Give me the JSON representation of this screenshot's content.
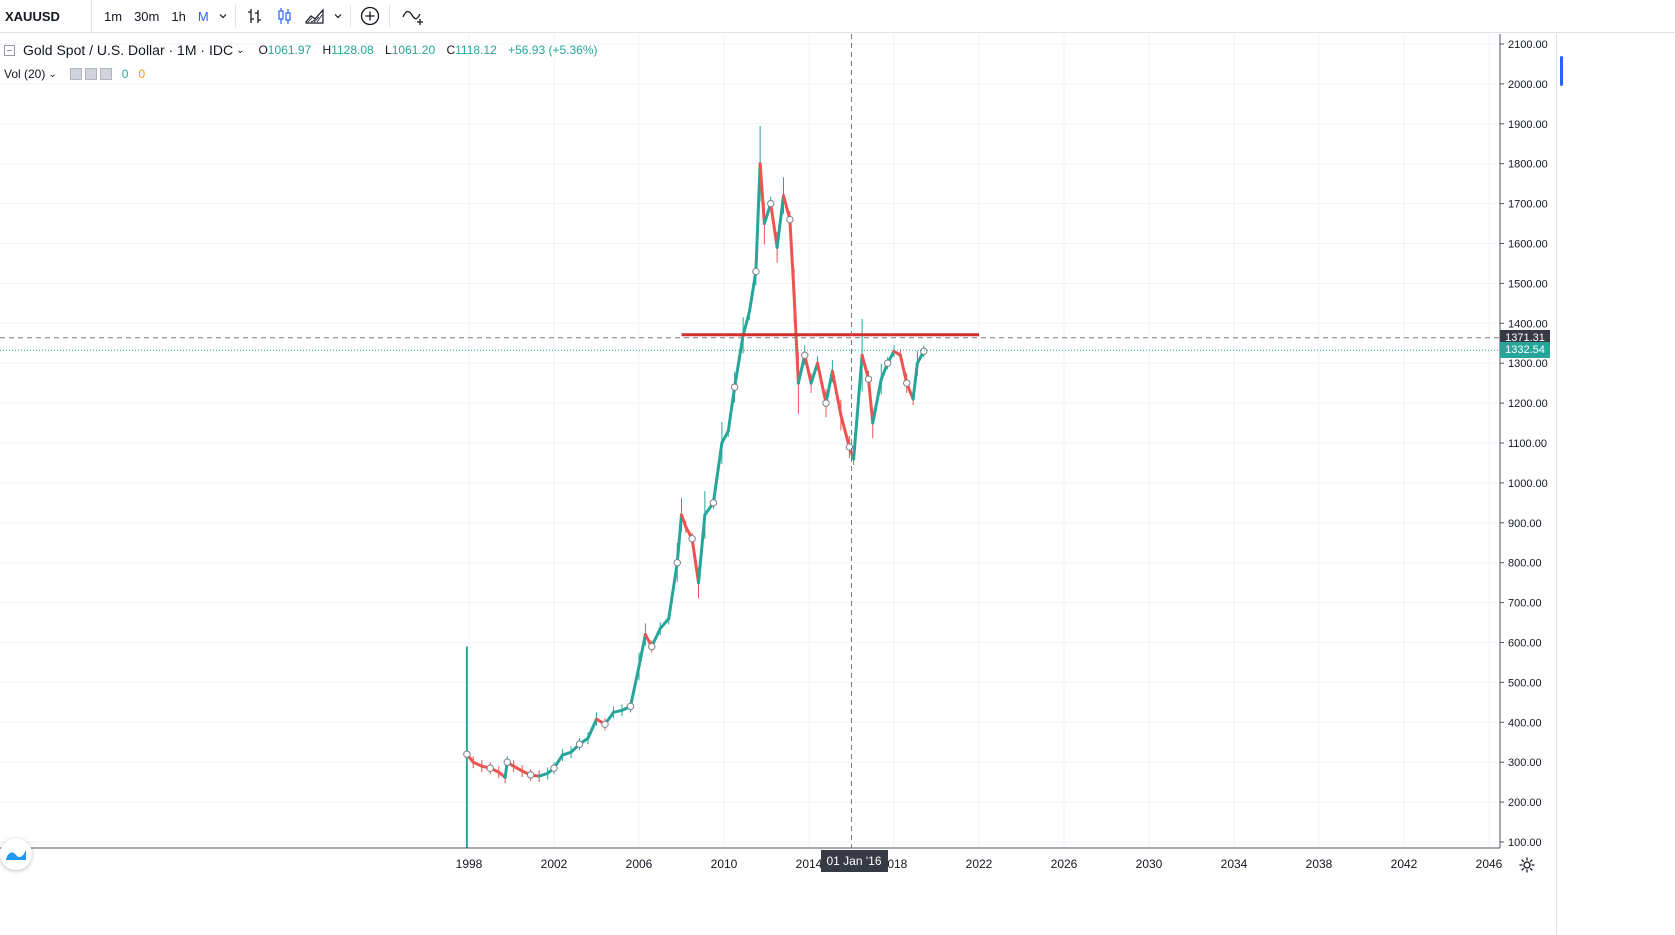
{
  "toolbar": {
    "symbol": "XAUUSD",
    "intervals": [
      "1m",
      "30m",
      "1h",
      "M"
    ],
    "active_interval": "M",
    "icons": [
      "interval-caret-icon",
      "bar-chart-icon",
      "candles-icon",
      "area-chart-icon",
      "chart-type-caret-icon",
      "add-compare-icon",
      "indicators-icon"
    ]
  },
  "legend": {
    "title": "Gold Spot / U.S. Dollar · 1M · IDC",
    "open_label": "O",
    "open": "1061.97",
    "high_label": "H",
    "high": "1128.08",
    "low_label": "L",
    "low": "1061.20",
    "close_label": "C",
    "close": "1118.12",
    "change": "+56.93 (+5.36%)"
  },
  "volume": {
    "label": "Vol (20)",
    "value1": "0",
    "value2": "0"
  },
  "price_tags": {
    "hline": "1371.31",
    "last": "1332.54"
  },
  "crosshair_date": "01 Jan '16",
  "colors": {
    "up": "#26a69a",
    "down": "#ef5350",
    "hline": "#d32f2f",
    "axis_tag_dark": "#363a45",
    "last_price": "#26a69a",
    "grid": "#f0f3fa"
  },
  "chart_data": {
    "type": "line",
    "title": "Gold Spot / U.S. Dollar",
    "ylabel": "",
    "xlabel": "",
    "ylim": [
      100,
      2100
    ],
    "yticks": [
      "100.00",
      "200.00",
      "300.00",
      "400.00",
      "500.00",
      "600.00",
      "700.00",
      "800.00",
      "900.00",
      "1000.00",
      "1100.00",
      "1200.00",
      "1300.00",
      "1400.00",
      "1500.00",
      "1600.00",
      "1700.00",
      "1800.00",
      "1900.00",
      "2000.00",
      "2100.00"
    ],
    "xticks": [
      "1998",
      "2002",
      "2006",
      "2010",
      "2014",
      "2018",
      "2022",
      "2026",
      "2030",
      "2034",
      "2038",
      "2042",
      "2046"
    ],
    "xlim": [
      1997.5,
      2046.3
    ],
    "grid": true,
    "horizontal_line": {
      "value": 1371.31,
      "from_year": 2008.0,
      "to_year": 2022.0
    },
    "last_price": 1332.54,
    "crosshair_year": 2016.0,
    "series": [
      {
        "x": [
          1997.9,
          1998.2,
          1998.6,
          1999.0,
          1999.4,
          1999.7,
          1999.8,
          2000.1,
          2000.5,
          2000.9,
          2001.3,
          2001.7,
          2002.0,
          2002.4,
          2002.8,
          2003.2,
          2003.6,
          2004.0,
          2004.4,
          2004.8,
          2005.2,
          2005.6,
          2006.0,
          2006.3,
          2006.6,
          2007.0,
          2007.4,
          2007.8,
          2008.0,
          2008.2,
          2008.5,
          2008.8,
          2009.1,
          2009.5,
          2009.9,
          2010.2,
          2010.5,
          2010.9,
          2011.2,
          2011.5,
          2011.7,
          2011.9,
          2012.2,
          2012.5,
          2012.8,
          2013.1,
          2013.3,
          2013.5,
          2013.8,
          2014.1,
          2014.4,
          2014.8,
          2015.1,
          2015.5,
          2015.9,
          2016.1,
          2016.5,
          2016.8,
          2017.0,
          2017.4,
          2017.7,
          2018.0,
          2018.3,
          2018.6,
          2018.9,
          2019.1,
          2019.4
        ],
        "values": [
          320,
          300,
          290,
          285,
          275,
          262,
          300,
          290,
          278,
          268,
          265,
          272,
          285,
          318,
          325,
          345,
          360,
          408,
          395,
          425,
          430,
          440,
          540,
          620,
          590,
          635,
          660,
          800,
          920,
          890,
          860,
          750,
          920,
          950,
          1100,
          1130,
          1240,
          1370,
          1430,
          1530,
          1800,
          1650,
          1700,
          1590,
          1720,
          1660,
          1470,
          1250,
          1320,
          1250,
          1300,
          1200,
          1280,
          1170,
          1090,
          1060,
          1320,
          1260,
          1150,
          1260,
          1300,
          1330,
          1320,
          1250,
          1210,
          1300,
          1330
        ]
      }
    ]
  }
}
